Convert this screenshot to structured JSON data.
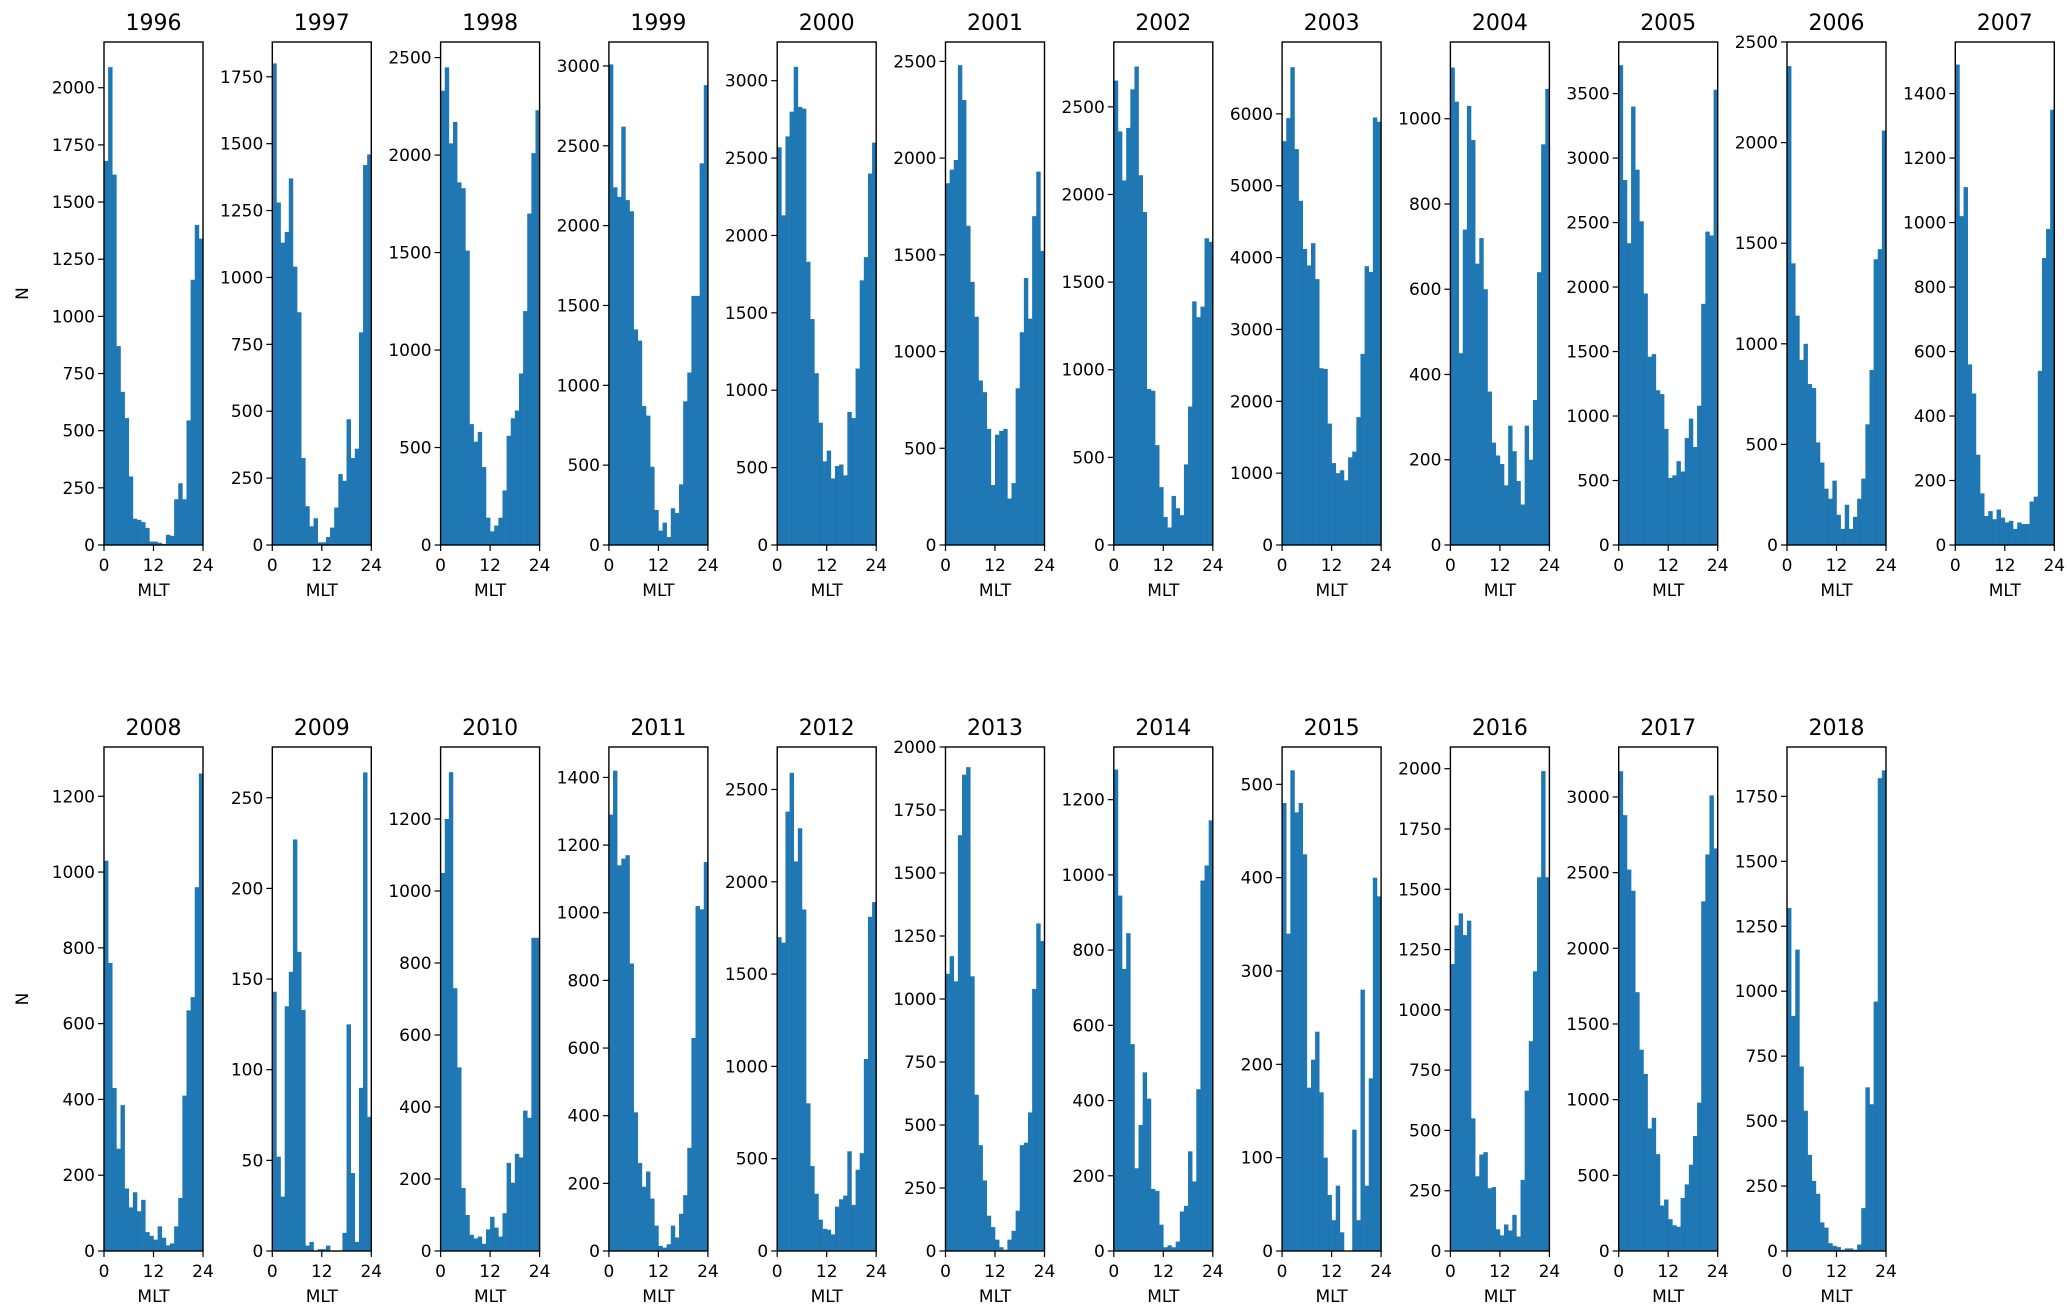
{
  "figure": {
    "bar_color": "#1f77b4",
    "ylabel": "N",
    "xlabel": "MLT",
    "x_ticks": [
      "0",
      "12",
      "24"
    ]
  },
  "chart_data": [
    {
      "type": "bar",
      "title": "1996",
      "xlabel": "MLT",
      "ylabel": "N",
      "xlim": [
        0,
        24
      ],
      "ylim": [
        0,
        2200
      ],
      "yticks": [
        0,
        250,
        500,
        750,
        1000,
        1250,
        1500,
        1750,
        2000
      ],
      "values": [
        1680,
        2090,
        1620,
        870,
        670,
        555,
        300,
        115,
        110,
        100,
        75,
        15,
        15,
        10,
        5,
        45,
        40,
        200,
        270,
        200,
        545,
        1160,
        1400,
        1340
      ]
    },
    {
      "type": "bar",
      "title": "1997",
      "xlabel": "MLT",
      "ylabel": "",
      "xlim": [
        0,
        24
      ],
      "ylim": [
        0,
        1880
      ],
      "yticks": [
        0,
        250,
        500,
        750,
        1000,
        1250,
        1500,
        1750
      ],
      "values": [
        1800,
        1280,
        1130,
        1170,
        1370,
        1040,
        870,
        325,
        145,
        70,
        100,
        10,
        10,
        30,
        65,
        140,
        265,
        240,
        470,
        325,
        360,
        795,
        1420,
        1460
      ]
    },
    {
      "type": "bar",
      "title": "1998",
      "xlabel": "MLT",
      "ylabel": "",
      "xlim": [
        0,
        24
      ],
      "ylim": [
        0,
        2580
      ],
      "yticks": [
        0,
        500,
        1000,
        1500,
        2000,
        2500
      ],
      "values": [
        2330,
        2450,
        2060,
        2170,
        1860,
        1830,
        1510,
        620,
        530,
        580,
        400,
        140,
        70,
        100,
        140,
        280,
        560,
        650,
        690,
        880,
        1200,
        1700,
        2010,
        2230
      ]
    },
    {
      "type": "bar",
      "title": "1999",
      "xlabel": "MLT",
      "ylabel": "",
      "xlim": [
        0,
        24
      ],
      "ylim": [
        0,
        3150
      ],
      "yticks": [
        0,
        500,
        1000,
        1500,
        2000,
        2500,
        3000
      ],
      "values": [
        3010,
        2240,
        2180,
        2620,
        2160,
        2090,
        1350,
        1280,
        870,
        810,
        490,
        220,
        90,
        140,
        50,
        230,
        200,
        380,
        900,
        1080,
        1560,
        1560,
        2390,
        2880
      ]
    },
    {
      "type": "bar",
      "title": "2000",
      "xlabel": "MLT",
      "ylabel": "",
      "xlim": [
        0,
        24
      ],
      "ylim": [
        0,
        3250
      ],
      "yticks": [
        0,
        500,
        1000,
        1500,
        2000,
        2500,
        3000
      ],
      "values": [
        2570,
        2130,
        2640,
        2800,
        3090,
        2830,
        2820,
        1830,
        1460,
        1110,
        790,
        540,
        610,
        430,
        510,
        520,
        450,
        860,
        820,
        1140,
        1710,
        1860,
        2400,
        2600
      ]
    },
    {
      "type": "bar",
      "title": "2001",
      "xlabel": "MLT",
      "ylabel": "",
      "xlim": [
        0,
        24
      ],
      "ylim": [
        0,
        2600
      ],
      "yticks": [
        0,
        500,
        1000,
        1500,
        2000,
        2500
      ],
      "values": [
        1870,
        1940,
        1990,
        2480,
        2300,
        1650,
        1360,
        1180,
        850,
        790,
        600,
        310,
        570,
        590,
        600,
        240,
        320,
        810,
        1100,
        1380,
        1170,
        1700,
        1930,
        1520
      ]
    },
    {
      "type": "bar",
      "title": "2002",
      "xlabel": "MLT",
      "ylabel": "",
      "xlim": [
        0,
        24
      ],
      "ylim": [
        0,
        2870
      ],
      "yticks": [
        0,
        500,
        1000,
        1500,
        2000,
        2500
      ],
      "values": [
        2650,
        2360,
        2080,
        2380,
        2600,
        2730,
        2110,
        1900,
        890,
        880,
        570,
        330,
        160,
        100,
        280,
        210,
        170,
        460,
        790,
        1390,
        1300,
        1360,
        1750,
        1730
      ]
    },
    {
      "type": "bar",
      "title": "2003",
      "xlabel": "MLT",
      "ylabel": "",
      "xlim": [
        0,
        24
      ],
      "ylim": [
        0,
        7000
      ],
      "yticks": [
        0,
        1000,
        2000,
        3000,
        4000,
        5000,
        6000
      ],
      "values": [
        5620,
        5940,
        6650,
        5510,
        4790,
        4120,
        3890,
        4200,
        3700,
        2460,
        2450,
        1690,
        1140,
        1000,
        1040,
        900,
        1220,
        1300,
        1780,
        2660,
        3880,
        3800,
        5950,
        5890
      ]
    },
    {
      "type": "bar",
      "title": "2004",
      "xlabel": "MLT",
      "ylabel": "",
      "xlim": [
        0,
        24
      ],
      "ylim": [
        0,
        1180
      ],
      "yticks": [
        0,
        200,
        400,
        600,
        800,
        1000
      ],
      "values": [
        1120,
        1040,
        450,
        740,
        1030,
        950,
        660,
        720,
        600,
        360,
        240,
        210,
        190,
        140,
        280,
        220,
        150,
        95,
        280,
        200,
        340,
        640,
        940,
        1070
      ]
    },
    {
      "type": "bar",
      "title": "2005",
      "xlabel": "MLT",
      "ylabel": "",
      "xlim": [
        0,
        24
      ],
      "ylim": [
        0,
        3900
      ],
      "yticks": [
        0,
        500,
        1000,
        1500,
        2000,
        2500,
        3000,
        3500
      ],
      "values": [
        3720,
        2830,
        2340,
        3400,
        2910,
        2510,
        1950,
        1460,
        1480,
        1200,
        1170,
        900,
        520,
        540,
        650,
        570,
        830,
        980,
        760,
        1080,
        1870,
        2430,
        2400,
        3530
      ]
    },
    {
      "type": "bar",
      "title": "2006",
      "xlabel": "MLT",
      "ylabel": "",
      "xlim": [
        0,
        24
      ],
      "ylim": [
        0,
        2500
      ],
      "yticks": [
        0,
        500,
        1000,
        1500,
        2000,
        2500
      ],
      "values": [
        2380,
        1400,
        1140,
        920,
        1000,
        800,
        780,
        510,
        410,
        280,
        230,
        320,
        150,
        80,
        200,
        80,
        140,
        230,
        330,
        600,
        870,
        1420,
        1470,
        2060
      ]
    },
    {
      "type": "bar",
      "title": "2007",
      "xlabel": "MLT",
      "ylabel": "",
      "xlim": [
        0,
        24
      ],
      "ylim": [
        0,
        1560
      ],
      "yticks": [
        0,
        200,
        400,
        600,
        800,
        1000,
        1200,
        1400
      ],
      "values": [
        1490,
        1020,
        1110,
        560,
        470,
        280,
        160,
        90,
        105,
        80,
        110,
        85,
        70,
        75,
        50,
        70,
        65,
        65,
        135,
        150,
        540,
        890,
        980,
        1350
      ]
    },
    {
      "type": "bar",
      "title": "2008",
      "xlabel": "MLT",
      "ylabel": "N",
      "xlim": [
        0,
        24
      ],
      "ylim": [
        0,
        1330
      ],
      "yticks": [
        0,
        200,
        400,
        600,
        800,
        1000,
        1200
      ],
      "values": [
        1030,
        760,
        430,
        270,
        385,
        165,
        115,
        155,
        105,
        135,
        50,
        40,
        30,
        65,
        35,
        15,
        20,
        65,
        140,
        410,
        635,
        670,
        960,
        1260
      ]
    },
    {
      "type": "bar",
      "title": "2009",
      "xlabel": "MLT",
      "ylabel": "",
      "xlim": [
        0,
        24
      ],
      "ylim": [
        0,
        278
      ],
      "yticks": [
        0,
        50,
        100,
        150,
        200,
        250
      ],
      "values": [
        143,
        52,
        30,
        135,
        154,
        227,
        165,
        133,
        3,
        5,
        0,
        1,
        1,
        3,
        0,
        0,
        0,
        10,
        125,
        43,
        5,
        90,
        264,
        74
      ]
    },
    {
      "type": "bar",
      "title": "2010",
      "xlabel": "MLT",
      "ylabel": "",
      "xlim": [
        0,
        24
      ],
      "ylim": [
        0,
        1400
      ],
      "yticks": [
        0,
        200,
        400,
        600,
        800,
        1000,
        1200
      ],
      "values": [
        1050,
        1200,
        1330,
        730,
        510,
        175,
        100,
        45,
        35,
        40,
        20,
        60,
        95,
        65,
        40,
        105,
        245,
        190,
        270,
        260,
        390,
        370,
        870,
        870
      ]
    },
    {
      "type": "bar",
      "title": "2011",
      "xlabel": "MLT",
      "ylabel": "",
      "xlim": [
        0,
        24
      ],
      "ylim": [
        0,
        1490
      ],
      "yticks": [
        0,
        200,
        400,
        600,
        800,
        1000,
        1200,
        1400
      ],
      "values": [
        1290,
        1420,
        1140,
        1160,
        1170,
        850,
        410,
        260,
        190,
        235,
        155,
        75,
        15,
        10,
        20,
        75,
        40,
        110,
        165,
        305,
        630,
        1020,
        1010,
        1150
      ]
    },
    {
      "type": "bar",
      "title": "2012",
      "xlabel": "MLT",
      "ylabel": "",
      "xlim": [
        0,
        24
      ],
      "ylim": [
        0,
        2730
      ],
      "yticks": [
        0,
        500,
        1000,
        1500,
        2000,
        2500
      ],
      "values": [
        1700,
        1670,
        2380,
        2590,
        2110,
        2290,
        1850,
        800,
        460,
        310,
        170,
        120,
        115,
        90,
        240,
        280,
        300,
        540,
        250,
        440,
        530,
        1040,
        1810,
        1890
      ]
    },
    {
      "type": "bar",
      "title": "2013",
      "xlabel": "MLT",
      "ylabel": "",
      "xlim": [
        0,
        24
      ],
      "ylim": [
        0,
        2000
      ],
      "yticks": [
        0,
        250,
        500,
        750,
        1000,
        1250,
        1500,
        1750,
        2000
      ],
      "values": [
        1100,
        1170,
        1070,
        1650,
        1890,
        1920,
        1090,
        620,
        420,
        280,
        140,
        95,
        45,
        15,
        5,
        45,
        80,
        160,
        420,
        430,
        550,
        1040,
        1300,
        1230
      ]
    },
    {
      "type": "bar",
      "title": "2014",
      "xlabel": "MLT",
      "ylabel": "",
      "xlim": [
        0,
        24
      ],
      "ylim": [
        0,
        1340
      ],
      "yticks": [
        0,
        200,
        400,
        600,
        800,
        1000,
        1200
      ],
      "values": [
        1280,
        945,
        750,
        845,
        550,
        220,
        335,
        475,
        405,
        165,
        160,
        70,
        10,
        15,
        10,
        25,
        105,
        120,
        265,
        185,
        430,
        985,
        1025,
        1145
      ]
    },
    {
      "type": "bar",
      "title": "2015",
      "xlabel": "MLT",
      "ylabel": "",
      "xlim": [
        0,
        24
      ],
      "ylim": [
        0,
        540
      ],
      "yticks": [
        0,
        100,
        200,
        300,
        400,
        500
      ],
      "values": [
        480,
        340,
        515,
        470,
        480,
        425,
        175,
        205,
        235,
        170,
        100,
        60,
        33,
        70,
        20,
        0,
        0,
        130,
        33,
        280,
        70,
        185,
        400,
        380
      ]
    },
    {
      "type": "bar",
      "title": "2016",
      "xlabel": "MLT",
      "ylabel": "",
      "xlim": [
        0,
        24
      ],
      "ylim": [
        0,
        2090
      ],
      "yticks": [
        0,
        250,
        500,
        750,
        1000,
        1250,
        1500,
        1750,
        2000
      ],
      "values": [
        1190,
        1350,
        1400,
        1310,
        1370,
        550,
        310,
        400,
        410,
        260,
        265,
        90,
        65,
        110,
        85,
        150,
        60,
        295,
        665,
        870,
        1160,
        1550,
        1990,
        1550
      ]
    },
    {
      "type": "bar",
      "title": "2017",
      "xlabel": "MLT",
      "ylabel": "",
      "xlim": [
        0,
        24
      ],
      "ylim": [
        0,
        3330
      ],
      "yticks": [
        0,
        500,
        1000,
        1500,
        2000,
        2500,
        3000
      ],
      "values": [
        3170,
        2880,
        2520,
        2380,
        1710,
        1330,
        1170,
        810,
        880,
        640,
        300,
        340,
        210,
        170,
        160,
        350,
        440,
        570,
        760,
        980,
        2310,
        2620,
        3010,
        2660
      ]
    },
    {
      "type": "bar",
      "title": "2018",
      "xlabel": "MLT",
      "ylabel": "",
      "xlim": [
        0,
        24
      ],
      "ylim": [
        0,
        1940
      ],
      "yticks": [
        0,
        250,
        500,
        750,
        1000,
        1250,
        1500,
        1750
      ],
      "values": [
        1320,
        905,
        1160,
        710,
        540,
        370,
        270,
        220,
        110,
        90,
        30,
        20,
        15,
        5,
        10,
        10,
        5,
        25,
        165,
        630,
        565,
        960,
        1820,
        1850
      ]
    }
  ]
}
